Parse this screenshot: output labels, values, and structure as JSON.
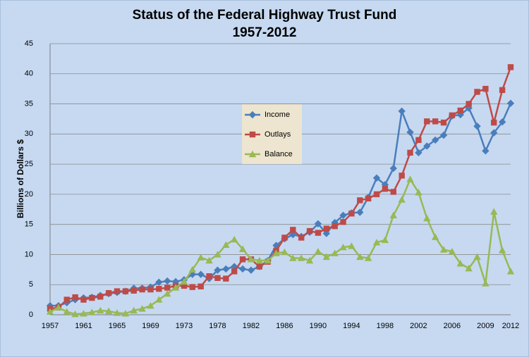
{
  "chart_data": {
    "type": "line",
    "title": "Status of the Federal Highway Trust Fund",
    "subtitle": "1957-2012",
    "y_label": "Billions of Dollars $",
    "categories": [
      "1957",
      null,
      null,
      null,
      "1961",
      null,
      null,
      null,
      "1965",
      null,
      null,
      null,
      "1969",
      null,
      null,
      null,
      "1973",
      null,
      null,
      null,
      "1978",
      null,
      null,
      null,
      "1982",
      null,
      null,
      null,
      "1986",
      null,
      null,
      null,
      "1990",
      null,
      null,
      null,
      "1994",
      null,
      null,
      null,
      "1998",
      null,
      null,
      null,
      "2002",
      null,
      null,
      null,
      "2006",
      null,
      null,
      null,
      "2009",
      null,
      null,
      "2012"
    ],
    "series": [
      {
        "name": "Income",
        "color": "#4a7ebb",
        "marker": "diamond",
        "values": [
          1.5,
          1.5,
          2.0,
          2.5,
          2.8,
          2.9,
          3.2,
          3.5,
          3.7,
          3.9,
          4.4,
          4.4,
          4.6,
          5.4,
          5.6,
          5.5,
          5.8,
          6.7,
          6.7,
          6.0,
          7.4,
          7.6,
          8.0,
          7.6,
          7.4,
          8.0,
          9.0,
          11.5,
          12.6,
          13.3,
          13.0,
          13.7,
          15.1,
          13.5,
          15.3,
          16.5,
          16.9,
          17.0,
          19.5,
          22.7,
          21.6,
          24.3,
          33.8,
          30.3,
          26.9,
          28.0,
          29.0,
          29.8,
          33.0,
          33.2,
          34.3,
          31.3,
          27.2,
          30.2,
          32.0,
          35.1
        ]
      },
      {
        "name": "Outlays",
        "color": "#be4b48",
        "marker": "square",
        "values": [
          1.0,
          1.2,
          2.5,
          2.9,
          2.5,
          2.8,
          3.0,
          3.6,
          3.9,
          3.9,
          4.0,
          4.2,
          4.2,
          4.3,
          4.5,
          4.8,
          4.8,
          4.6,
          4.7,
          6.4,
          6.1,
          6.0,
          7.2,
          9.2,
          9.2,
          8.0,
          8.8,
          10.6,
          12.8,
          14.1,
          12.8,
          13.9,
          13.6,
          14.3,
          14.7,
          15.4,
          16.8,
          19.0,
          19.3,
          20.0,
          20.9,
          20.4,
          23.1,
          26.9,
          29.0,
          32.1,
          32.1,
          31.9,
          33.1,
          33.9,
          35.0,
          37.0,
          37.5,
          31.9,
          37.3,
          41.1
        ]
      },
      {
        "name": "Balance",
        "color": "#98b954",
        "marker": "triangle",
        "values": [
          0.5,
          1.2,
          0.5,
          0.1,
          0.2,
          0.4,
          0.7,
          0.6,
          0.3,
          0.2,
          0.7,
          1.0,
          1.5,
          2.5,
          3.5,
          4.5,
          5.5,
          7.5,
          9.5,
          9.0,
          10.0,
          11.6,
          12.5,
          10.9,
          9.2,
          9.0,
          9.0,
          10.2,
          10.4,
          9.4,
          9.4,
          9.0,
          10.5,
          9.6,
          10.2,
          11.2,
          11.4,
          9.6,
          9.4,
          12.0,
          12.4,
          16.5,
          19.1,
          22.5,
          20.3,
          16.0,
          12.9,
          10.8,
          10.5,
          8.5,
          7.7,
          9.6,
          5.2,
          17.1,
          10.7,
          7.2
        ]
      }
    ],
    "ylim": [
      0,
      45
    ],
    "yticks": [
      0,
      5,
      10,
      15,
      20,
      25,
      30,
      35,
      40,
      45
    ],
    "grid": true
  }
}
